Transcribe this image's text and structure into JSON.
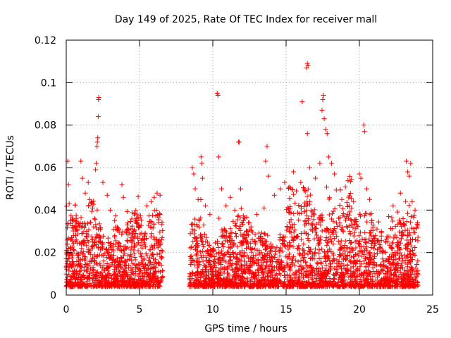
{
  "chart_data": {
    "type": "scatter",
    "title": "Day 149 of 2025, Rate Of TEC Index for receiver mall",
    "xlabel": "GPS time / hours",
    "ylabel": "ROTI / TECUs",
    "xlim": [
      0,
      25
    ],
    "ylim": [
      0,
      0.12
    ],
    "xticks": [
      0,
      5,
      10,
      15,
      20,
      25
    ],
    "xtick_labels": [
      "0",
      "5",
      "10",
      "15",
      "20",
      "25"
    ],
    "yticks": [
      0,
      0.02,
      0.04,
      0.06,
      0.08,
      0.1,
      0.12
    ],
    "ytick_labels": [
      "0",
      "0.02",
      "0.04",
      "0.06",
      "0.08",
      "0.1",
      "0.12"
    ],
    "grid": true,
    "marker": "plus",
    "color": "#ff0000",
    "data_gap_hours": [
      6.6,
      8.4
    ],
    "series": [
      {
        "name": "ROTI",
        "points": [
          [
            0.1,
            0.063
          ],
          [
            0.15,
            0.052
          ],
          [
            0.2,
            0.043
          ],
          [
            0.3,
            0.035
          ],
          [
            0.5,
            0.028
          ],
          [
            1.0,
            0.063
          ],
          [
            1.1,
            0.055
          ],
          [
            1.3,
            0.048
          ],
          [
            1.5,
            0.053
          ],
          [
            1.6,
            0.045
          ],
          [
            1.8,
            0.041
          ],
          [
            2.0,
            0.059
          ],
          [
            2.05,
            0.062
          ],
          [
            2.1,
            0.07
          ],
          [
            2.12,
            0.072
          ],
          [
            2.15,
            0.074
          ],
          [
            2.18,
            0.084
          ],
          [
            2.2,
            0.092
          ],
          [
            2.22,
            0.093
          ],
          [
            2.5,
            0.053
          ],
          [
            2.8,
            0.047
          ],
          [
            3.0,
            0.04
          ],
          [
            3.3,
            0.035
          ],
          [
            3.8,
            0.052
          ],
          [
            3.9,
            0.046
          ],
          [
            4.2,
            0.034
          ],
          [
            4.6,
            0.03
          ],
          [
            5.0,
            0.032
          ],
          [
            5.5,
            0.042
          ],
          [
            5.8,
            0.044
          ],
          [
            6.0,
            0.046
          ],
          [
            6.2,
            0.048
          ],
          [
            6.4,
            0.047
          ],
          [
            8.6,
            0.06
          ],
          [
            8.7,
            0.057
          ],
          [
            8.8,
            0.05
          ],
          [
            9.0,
            0.045
          ],
          [
            9.2,
            0.065
          ],
          [
            9.25,
            0.062
          ],
          [
            9.3,
            0.055
          ],
          [
            9.5,
            0.042
          ],
          [
            9.8,
            0.038
          ],
          [
            10.3,
            0.095
          ],
          [
            10.35,
            0.094
          ],
          [
            10.4,
            0.065
          ],
          [
            10.6,
            0.05
          ],
          [
            10.9,
            0.042
          ],
          [
            11.2,
            0.046
          ],
          [
            11.5,
            0.04
          ],
          [
            11.75,
            0.072
          ],
          [
            11.8,
            0.072
          ],
          [
            11.9,
            0.05
          ],
          [
            12.5,
            0.034
          ],
          [
            13.0,
            0.038
          ],
          [
            13.5,
            0.041
          ],
          [
            13.7,
            0.07
          ],
          [
            13.6,
            0.063
          ],
          [
            13.8,
            0.056
          ],
          [
            14.2,
            0.047
          ],
          [
            14.6,
            0.05
          ],
          [
            14.9,
            0.053
          ],
          [
            15.5,
            0.058
          ],
          [
            15.7,
            0.049
          ],
          [
            16.0,
            0.053
          ],
          [
            16.1,
            0.091
          ],
          [
            16.4,
            0.107
          ],
          [
            16.45,
            0.109
          ],
          [
            16.5,
            0.108
          ],
          [
            16.45,
            0.076
          ],
          [
            16.6,
            0.06
          ],
          [
            17.0,
            0.055
          ],
          [
            17.3,
            0.062
          ],
          [
            17.45,
            0.087
          ],
          [
            17.5,
            0.092
          ],
          [
            17.55,
            0.094
          ],
          [
            17.6,
            0.083
          ],
          [
            17.7,
            0.078
          ],
          [
            17.8,
            0.076
          ],
          [
            17.9,
            0.065
          ],
          [
            18.1,
            0.062
          ],
          [
            18.3,
            0.057
          ],
          [
            18.8,
            0.045
          ],
          [
            19.3,
            0.042
          ],
          [
            19.6,
            0.044
          ],
          [
            20.0,
            0.057
          ],
          [
            20.1,
            0.055
          ],
          [
            20.3,
            0.08
          ],
          [
            20.35,
            0.077
          ],
          [
            20.5,
            0.05
          ],
          [
            20.7,
            0.045
          ],
          [
            21.5,
            0.03
          ],
          [
            22.0,
            0.037
          ],
          [
            22.3,
            0.042
          ],
          [
            22.8,
            0.048
          ],
          [
            23.2,
            0.063
          ],
          [
            23.3,
            0.058
          ],
          [
            23.4,
            0.056
          ],
          [
            23.5,
            0.062
          ],
          [
            23.6,
            0.044
          ],
          [
            23.8,
            0.04
          ]
        ]
      }
    ]
  }
}
